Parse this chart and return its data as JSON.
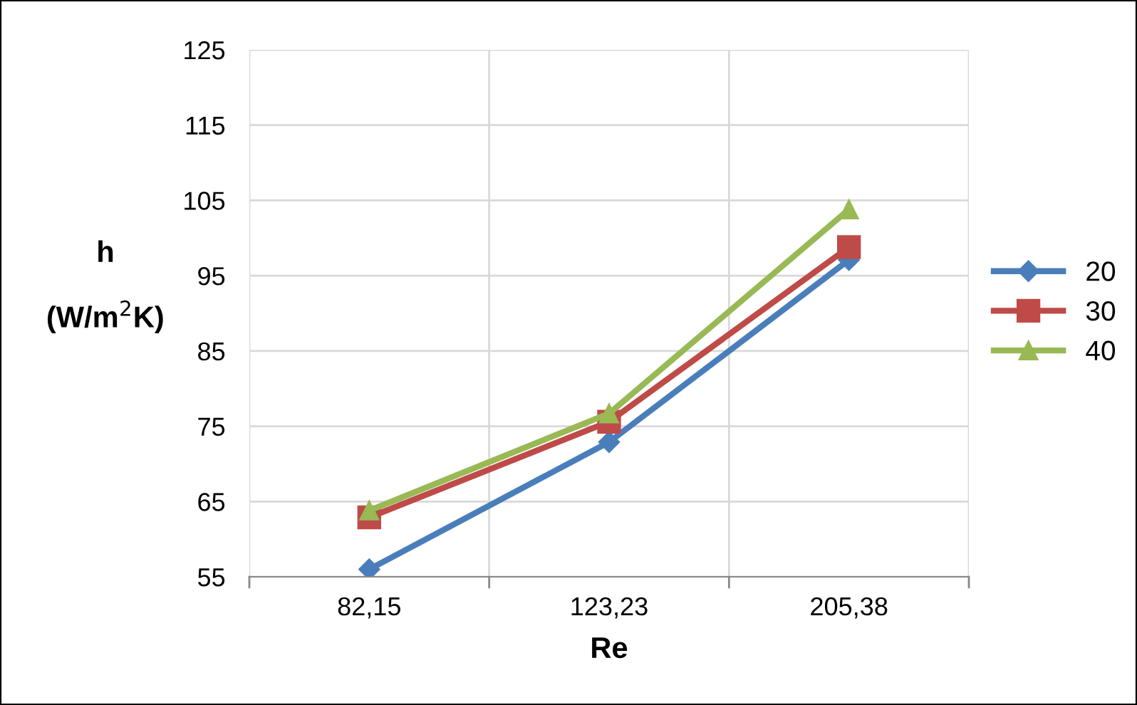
{
  "chart_data": {
    "type": "line",
    "xlabel": "Re",
    "ylabel": "h\n(W/m$^{2}$K)",
    "categories": [
      "82,15",
      "123,23",
      "205,38"
    ],
    "series": [
      {
        "name": "20",
        "color": "#4a7ebb",
        "marker": "diamond",
        "values": [
          56,
          72.9,
          97.1
        ]
      },
      {
        "name": "30",
        "color": "#be4b48",
        "marker": "square",
        "values": [
          62.9,
          75.6,
          98.8
        ]
      },
      {
        "name": "40",
        "color": "#98b954",
        "marker": "triangle",
        "values": [
          63.8,
          76.7,
          103.8
        ]
      }
    ],
    "ylim": [
      55,
      125
    ],
    "yticks": [
      55,
      65,
      75,
      85,
      95,
      105,
      115,
      125
    ],
    "grid": true,
    "legend": "right"
  }
}
